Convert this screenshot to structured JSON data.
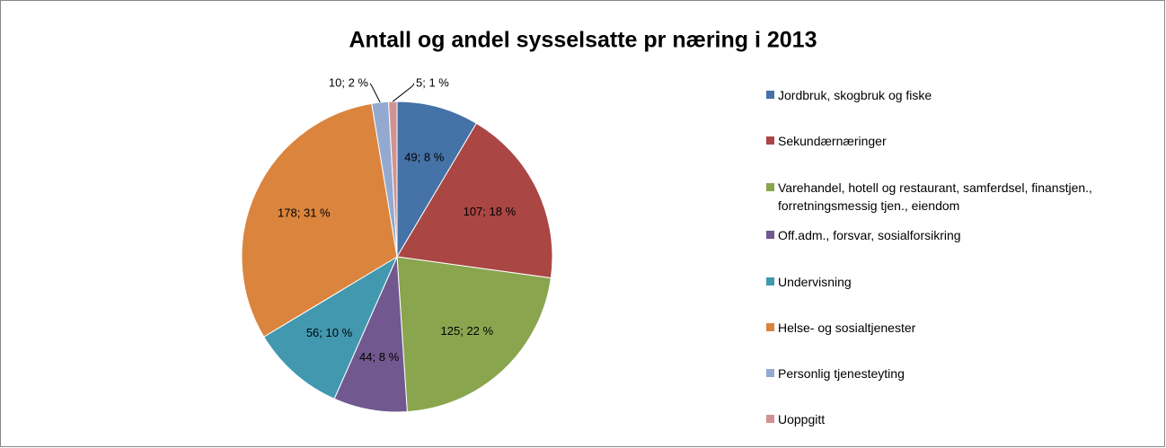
{
  "chart_data": {
    "type": "pie",
    "title": "Antall og andel sysselsatte pr næring i 2013",
    "categories": [
      "Jordbruk, skogbruk og fiske",
      "Sekundærnæringer",
      "Varehandel, hotell og restaurant, samferdsel, finanstjen., forretningsmessig tjen., eiendom",
      "Off.adm., forsvar, sosialforsikring",
      "Undervisning",
      "Helse- og sosialtjenester",
      "Personlig tjenesteyting",
      "Uoppgitt"
    ],
    "values": [
      49,
      107,
      125,
      44,
      56,
      178,
      10,
      5
    ],
    "value_labels": [
      "49; 8 %",
      "107; 18 %",
      "125; 22 %",
      "44; 8 %",
      "56; 10 %",
      "178; 31 %",
      "10; 2 %",
      "5; 1 %"
    ],
    "colors": [
      "#4572a7",
      "#aa4643",
      "#89a54e",
      "#71588f",
      "#4198af",
      "#db843d",
      "#93a9cf",
      "#d19392"
    ],
    "legend": "right"
  }
}
